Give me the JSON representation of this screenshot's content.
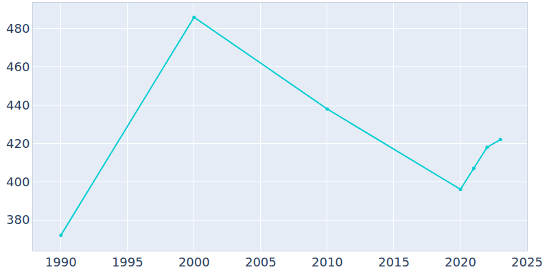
{
  "chart_data": {
    "type": "line",
    "x": [
      1990,
      2000,
      2010,
      2020,
      2021,
      2022,
      2023
    ],
    "values": [
      372,
      486,
      438,
      396,
      407,
      418,
      422
    ],
    "color": "#00ced1",
    "marker": "circle",
    "xlim": [
      1987.9,
      2025
    ],
    "xticks": [
      1990,
      1995,
      2000,
      2005,
      2010,
      2015,
      2020,
      2025
    ],
    "ylim": [
      363.9,
      493.6
    ],
    "yticks": [
      380,
      400,
      420,
      440,
      460,
      480
    ],
    "grid": true
  }
}
